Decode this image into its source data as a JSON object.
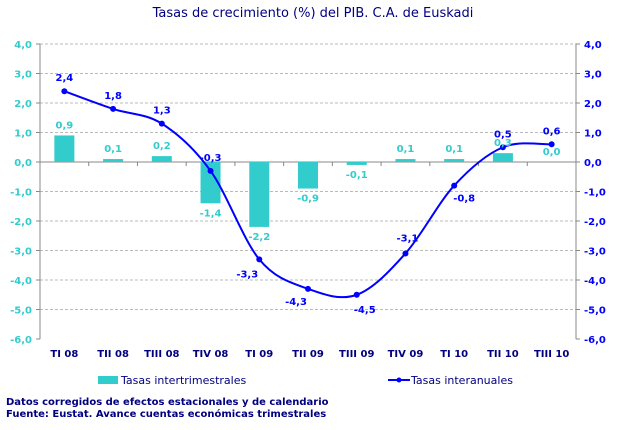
{
  "chart_data": {
    "type": "bar+line",
    "title": "Tasas de crecimiento (%) del PIB. C.A. de Euskadi",
    "categories": [
      "TI 08",
      "TII 08",
      "TIII 08",
      "TIV 08",
      "TI 09",
      "TII 09",
      "TIII 09",
      "TIV 09",
      "TI 10",
      "TII 10",
      "TIII 10"
    ],
    "series": [
      {
        "name": "Tasas intertrimestrales",
        "type": "bar",
        "axis": "left",
        "color": "#33CCCC",
        "values": [
          0.9,
          0.1,
          0.2,
          -1.4,
          -2.2,
          -0.9,
          -0.1,
          0.1,
          0.1,
          0.3,
          0.0
        ]
      },
      {
        "name": "Tasas interanuales",
        "type": "line",
        "axis": "right",
        "color": "#0000FF",
        "values": [
          2.4,
          1.8,
          1.3,
          -0.3,
          -3.3,
          -4.3,
          -4.5,
          -3.1,
          -0.8,
          0.5,
          0.6
        ]
      }
    ],
    "ylim": [
      -6,
      4
    ],
    "y_ticks": [
      "4,0",
      "3,0",
      "2,0",
      "1,0",
      "0,0",
      "-1,0",
      "-2,0",
      "-3,0",
      "-4,0",
      "-5,0",
      "-6,0"
    ],
    "grid": true,
    "legend": "bottom",
    "left_axis_color": "#33CCCC",
    "right_axis_color": "#0000FF"
  },
  "notes": [
    "Datos corregidos de efectos estacionales y de calendario",
    "Fuente: Eustat. Avance cuentas económicas trimestrales"
  ]
}
